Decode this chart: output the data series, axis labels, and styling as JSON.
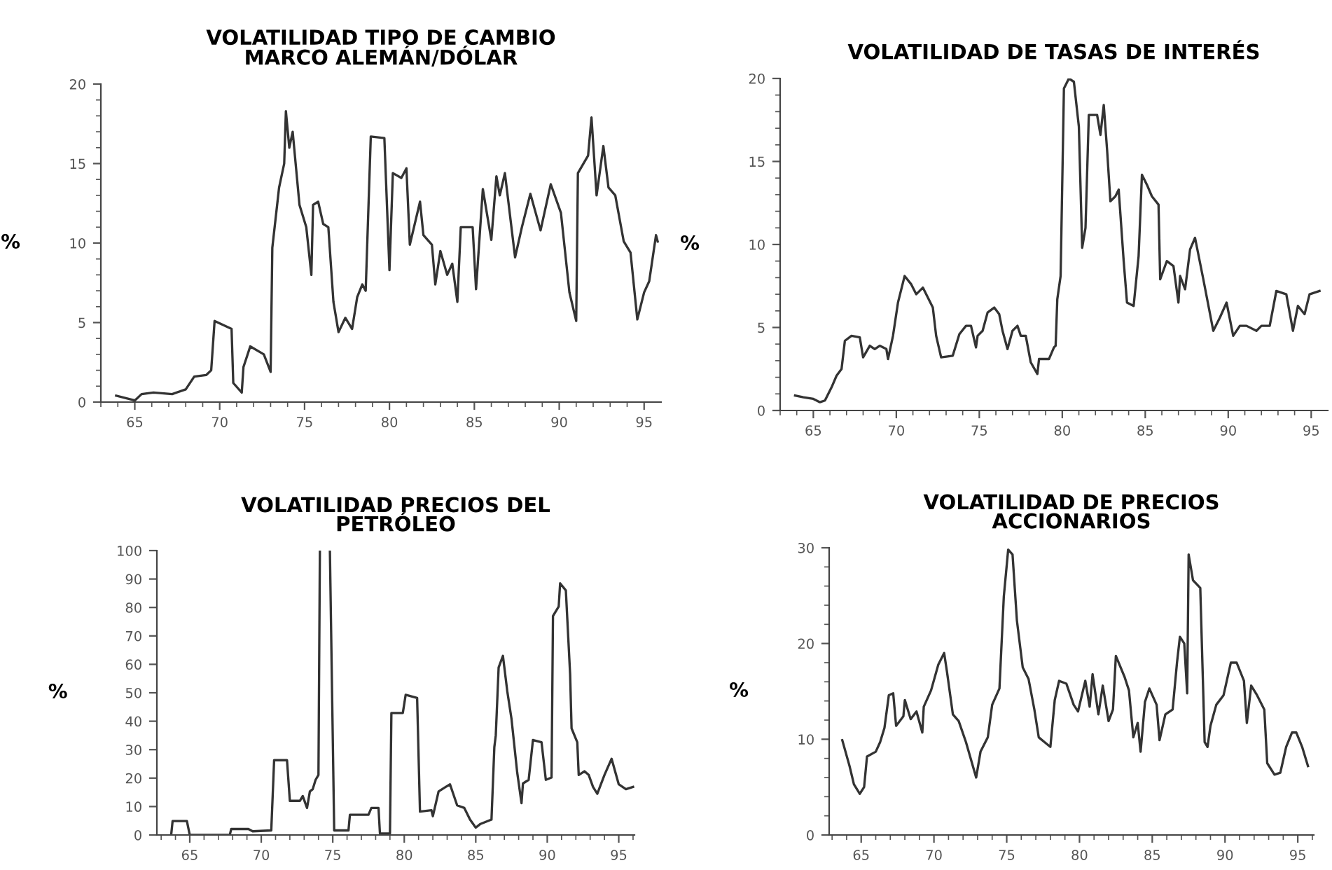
{
  "chart_data": [
    {
      "type": "line",
      "title": "VOLATILIDAD TIPO DE CAMBIO\nMARCO ALEMÁN/DÓLAR",
      "ylabel": "%",
      "grid": false,
      "xlim": [
        63,
        96
      ],
      "ylim": [
        0,
        20
      ],
      "xticks": [
        {
          "value": 63,
          "label": null
        },
        {
          "value": 64,
          "label": null
        },
        65,
        {
          "value": 66,
          "label": null
        },
        {
          "value": 67,
          "label": null
        },
        {
          "value": 68,
          "label": null
        },
        {
          "value": 69,
          "label": null
        },
        70,
        {
          "value": 71,
          "label": null
        },
        {
          "value": 72,
          "label": null
        },
        {
          "value": 73,
          "label": null
        },
        {
          "value": 74,
          "label": null
        },
        75,
        {
          "value": 76,
          "label": null
        },
        {
          "value": 77,
          "label": null
        },
        {
          "value": 78,
          "label": null
        },
        {
          "value": 79,
          "label": null
        },
        80,
        {
          "value": 81,
          "label": null
        },
        {
          "value": 82,
          "label": null
        },
        {
          "value": 83,
          "label": null
        },
        {
          "value": 84,
          "label": null
        },
        85,
        {
          "value": 86,
          "label": null
        },
        {
          "value": 87,
          "label": null
        },
        {
          "value": 88,
          "label": null
        },
        {
          "value": 89,
          "label": null
        },
        90,
        {
          "value": 91,
          "label": null
        },
        {
          "value": 92,
          "label": null
        },
        {
          "value": 93,
          "label": null
        },
        {
          "value": 94,
          "label": null
        },
        95
      ],
      "yticks": [
        0,
        {
          "value": 1,
          "label": null
        },
        {
          "value": 2,
          "label": null
        },
        {
          "value": 3,
          "label": null
        },
        {
          "value": 4,
          "label": null
        },
        5,
        {
          "value": 6,
          "label": null
        },
        {
          "value": 7,
          "label": null
        },
        {
          "value": 8,
          "label": null
        },
        {
          "value": 9,
          "label": null
        },
        10,
        {
          "value": 11,
          "label": null
        },
        {
          "value": 12,
          "label": null
        },
        {
          "value": 13,
          "label": null
        },
        {
          "value": 14,
          "label": null
        },
        15,
        {
          "value": 16,
          "label": null
        },
        {
          "value": 17,
          "label": null
        },
        {
          "value": 18,
          "label": null
        },
        {
          "value": 19,
          "label": null
        },
        20
      ],
      "series": [
        {
          "color": "#333333",
          "x": [
            63.9,
            65.0,
            65.4,
            66.1,
            67.2,
            68.0,
            68.5,
            69.2,
            69.5,
            69.7,
            70.7,
            70.8,
            71.3,
            71.4,
            71.8,
            72.6,
            73.0,
            73.1,
            73.5,
            73.8,
            73.9,
            74.1,
            74.3,
            74.7,
            75.1,
            75.4,
            75.5,
            75.8,
            76.1,
            76.4,
            76.7,
            77.0,
            77.4,
            77.8,
            78.1,
            78.4,
            78.6,
            78.9,
            79.7,
            80.0,
            80.2,
            80.7,
            81.0,
            81.2,
            81.8,
            82.0,
            82.5,
            82.7,
            83.0,
            83.4,
            83.7,
            84.0,
            84.2,
            84.9,
            85.1,
            85.5,
            86.0,
            86.3,
            86.5,
            86.8,
            87.4,
            87.8,
            88.3,
            88.9,
            89.5,
            90.1,
            90.6,
            91.0,
            91.1,
            91.7,
            91.9,
            92.2,
            92.6,
            92.9,
            93.3,
            93.8,
            94.2,
            94.6,
            95.0,
            95.3,
            95.7,
            95.8
          ],
          "values": [
            0.4,
            0.1,
            0.5,
            0.6,
            0.5,
            0.8,
            1.6,
            1.7,
            2.0,
            5.1,
            4.6,
            1.2,
            0.6,
            2.2,
            3.5,
            3.0,
            1.9,
            9.7,
            13.5,
            15.0,
            18.3,
            16.0,
            17.0,
            12.4,
            11.0,
            8.0,
            12.4,
            12.6,
            11.2,
            11.0,
            6.3,
            4.4,
            5.3,
            4.6,
            6.6,
            7.4,
            7.0,
            16.7,
            16.6,
            8.3,
            14.4,
            14.1,
            14.7,
            9.9,
            12.6,
            10.5,
            9.9,
            7.4,
            9.5,
            8.0,
            8.7,
            6.3,
            11.0,
            11.0,
            7.1,
            13.4,
            10.2,
            14.2,
            13.0,
            14.4,
            9.1,
            11.0,
            13.1,
            10.8,
            13.7,
            11.9,
            6.9,
            5.1,
            14.4,
            15.5,
            17.9,
            13.0,
            16.1,
            13.5,
            13.0,
            10.1,
            9.4,
            5.2,
            6.9,
            7.6,
            10.5,
            10.1
          ]
        }
      ]
    },
    {
      "type": "line",
      "title": "VOLATILIDAD DE TASAS DE INTERÉS",
      "ylabel": "%",
      "grid": false,
      "xlim": [
        63,
        96
      ],
      "ylim": [
        0,
        20
      ],
      "xticks": [
        {
          "value": 63,
          "label": null
        },
        {
          "value": 64,
          "label": null
        },
        65,
        {
          "value": 66,
          "label": null
        },
        {
          "value": 67,
          "label": null
        },
        {
          "value": 68,
          "label": null
        },
        {
          "value": 69,
          "label": null
        },
        70,
        {
          "value": 71,
          "label": null
        },
        {
          "value": 72,
          "label": null
        },
        {
          "value": 73,
          "label": null
        },
        {
          "value": 74,
          "label": null
        },
        75,
        {
          "value": 76,
          "label": null
        },
        {
          "value": 77,
          "label": null
        },
        {
          "value": 78,
          "label": null
        },
        {
          "value": 79,
          "label": null
        },
        80,
        {
          "value": 81,
          "label": null
        },
        {
          "value": 82,
          "label": null
        },
        {
          "value": 83,
          "label": null
        },
        {
          "value": 84,
          "label": null
        },
        85,
        {
          "value": 86,
          "label": null
        },
        {
          "value": 87,
          "label": null
        },
        {
          "value": 88,
          "label": null
        },
        {
          "value": 89,
          "label": null
        },
        90,
        {
          "value": 91,
          "label": null
        },
        {
          "value": 92,
          "label": null
        },
        {
          "value": 93,
          "label": null
        },
        {
          "value": 94,
          "label": null
        },
        95
      ],
      "yticks": [
        0,
        {
          "value": 1,
          "label": null
        },
        {
          "value": 2,
          "label": null
        },
        {
          "value": 3,
          "label": null
        },
        {
          "value": 4,
          "label": null
        },
        5,
        {
          "value": 6,
          "label": null
        },
        {
          "value": 7,
          "label": null
        },
        {
          "value": 8,
          "label": null
        },
        {
          "value": 9,
          "label": null
        },
        10,
        {
          "value": 11,
          "label": null
        },
        {
          "value": 12,
          "label": null
        },
        {
          "value": 13,
          "label": null
        },
        {
          "value": 14,
          "label": null
        },
        15,
        {
          "value": 16,
          "label": null
        },
        {
          "value": 17,
          "label": null
        },
        {
          "value": 18,
          "label": null
        },
        {
          "value": 19,
          "label": null
        },
        20
      ],
      "series": [
        {
          "color": "#333333",
          "x": [
            63.9,
            64.4,
            65.0,
            65.4,
            65.7,
            66.1,
            66.4,
            66.7,
            66.9,
            67.3,
            67.8,
            68.0,
            68.4,
            68.7,
            69.0,
            69.4,
            69.5,
            69.8,
            70.1,
            70.5,
            70.9,
            71.2,
            71.6,
            72.2,
            72.4,
            72.7,
            73.4,
            73.8,
            74.2,
            74.5,
            74.8,
            74.9,
            75.2,
            75.5,
            75.9,
            76.2,
            76.4,
            76.7,
            77.0,
            77.3,
            77.5,
            77.8,
            78.1,
            78.5,
            78.6,
            79.2,
            79.5,
            79.6,
            79.7,
            79.9,
            80.1,
            80.4,
            80.7,
            81.0,
            81.2,
            81.4,
            81.6,
            82.1,
            82.3,
            82.5,
            82.7,
            82.9,
            83.2,
            83.4,
            83.7,
            83.9,
            84.3,
            84.6,
            84.8,
            85.1,
            85.4,
            85.8,
            85.9,
            86.3,
            86.7,
            87.0,
            87.1,
            87.4,
            87.7,
            88.0,
            88.5,
            89.1,
            89.5,
            89.9,
            90.3,
            90.7,
            91.1,
            91.7,
            92.0,
            92.5,
            92.9,
            93.5,
            93.9,
            94.2,
            94.6,
            94.9,
            95.5
          ],
          "values": [
            0.9,
            0.8,
            0.7,
            0.5,
            0.6,
            1.4,
            2.1,
            2.5,
            4.2,
            4.5,
            4.4,
            3.2,
            3.9,
            3.7,
            3.9,
            3.7,
            3.1,
            4.5,
            6.5,
            8.1,
            7.6,
            7.0,
            7.4,
            6.2,
            4.5,
            3.2,
            3.3,
            4.6,
            5.1,
            5.1,
            3.8,
            4.5,
            4.8,
            5.9,
            6.2,
            5.8,
            4.8,
            3.7,
            4.8,
            5.1,
            4.5,
            4.5,
            2.9,
            2.2,
            3.1,
            3.1,
            3.8,
            3.9,
            6.7,
            8.1,
            19.4,
            20.0,
            19.8,
            17.1,
            9.8,
            11.0,
            17.8,
            17.8,
            16.6,
            18.4,
            15.7,
            12.6,
            12.9,
            13.3,
            9.0,
            6.5,
            6.3,
            9.3,
            14.2,
            13.6,
            12.9,
            12.4,
            7.9,
            9.0,
            8.7,
            6.5,
            8.1,
            7.3,
            9.7,
            10.4,
            7.9,
            4.8,
            5.6,
            6.5,
            4.5,
            5.1,
            5.1,
            4.8,
            5.1,
            5.1,
            7.2,
            7.0,
            4.8,
            6.3,
            5.8,
            7.0,
            7.2
          ]
        }
      ]
    },
    {
      "type": "line",
      "title": "VOLATILIDAD PRECIOS DEL\nPETRÓLEO",
      "ylabel": "%",
      "grid": false,
      "xlim": [
        62.7,
        96.1
      ],
      "ylim": [
        0,
        100
      ],
      "xticks": [
        {
          "value": 63,
          "label": null
        },
        {
          "value": 64,
          "label": null
        },
        65,
        {
          "value": 66,
          "label": null
        },
        {
          "value": 67,
          "label": null
        },
        {
          "value": 68,
          "label": null
        },
        {
          "value": 69,
          "label": null
        },
        70,
        {
          "value": 71,
          "label": null
        },
        {
          "value": 72,
          "label": null
        },
        {
          "value": 73,
          "label": null
        },
        {
          "value": 74,
          "label": null
        },
        75,
        {
          "value": 76,
          "label": null
        },
        {
          "value": 77,
          "label": null
        },
        {
          "value": 78,
          "label": null
        },
        {
          "value": 79,
          "label": null
        },
        80,
        {
          "value": 81,
          "label": null
        },
        {
          "value": 82,
          "label": null
        },
        {
          "value": 83,
          "label": null
        },
        {
          "value": 84,
          "label": null
        },
        85,
        {
          "value": 86,
          "label": null
        },
        {
          "value": 87,
          "label": null
        },
        {
          "value": 88,
          "label": null
        },
        {
          "value": 89,
          "label": null
        },
        90,
        {
          "value": 91,
          "label": null
        },
        {
          "value": 92,
          "label": null
        },
        {
          "value": 93,
          "label": null
        },
        {
          "value": 94,
          "label": null
        },
        95,
        {
          "value": 96,
          "label": null
        }
      ],
      "yticks": [
        0,
        10,
        20,
        30,
        40,
        50,
        60,
        70,
        80,
        90,
        100
      ],
      "series": [
        {
          "color": "#333333",
          "x": [
            63.7,
            63.8,
            64.8,
            65.0,
            67.8,
            67.9,
            69.1,
            69.4,
            70.7,
            70.9,
            71.8,
            72.0,
            72.7,
            72.9,
            73.2,
            73.4,
            73.6,
            73.8,
            74.0,
            74.1,
            74.7,
            74.8,
            75.1,
            76.1,
            76.2,
            77.5,
            77.7,
            78.2,
            78.3,
            79.0,
            79.1,
            79.9,
            80.1,
            80.9,
            81.1,
            81.9,
            82.0,
            82.4,
            82.9,
            83.2,
            83.7,
            84.2,
            84.6,
            85.0,
            85.3,
            86.1,
            86.3,
            86.4,
            86.6,
            86.9,
            87.2,
            87.5,
            87.9,
            88.2,
            88.3,
            88.7,
            89.0,
            89.6,
            89.9,
            90.3,
            90.4,
            90.8,
            90.9,
            91.3,
            91.6,
            91.7,
            92.1,
            92.2,
            92.6,
            92.9,
            93.2,
            93.5,
            94.0,
            94.5,
            95.0,
            95.5,
            96.0
          ],
          "values": [
            0,
            4.9,
            4.9,
            0,
            0,
            2.1,
            2.1,
            1.3,
            1.6,
            26.3,
            26.3,
            12.0,
            12.0,
            13.7,
            9.5,
            15.3,
            16.1,
            19.4,
            21.1,
            100,
            null,
            100,
            1.6,
            1.6,
            7.1,
            7.1,
            9.5,
            9.5,
            0.5,
            0.5,
            42.9,
            42.9,
            49.3,
            48.2,
            8.2,
            8.7,
            6.6,
            15.3,
            16.9,
            17.8,
            10.4,
            9.5,
            5.4,
            2.6,
            3.8,
            5.4,
            30.9,
            35.0,
            58.9,
            63.0,
            50.7,
            40.8,
            21.9,
            11.2,
            18.1,
            19.4,
            33.4,
            32.6,
            19.4,
            20.2,
            77.0,
            80.3,
            88.5,
            86.0,
            56.4,
            37.5,
            32.6,
            21.1,
            22.4,
            21.1,
            16.9,
            14.5,
            21.1,
            26.8,
            17.8,
            16.1,
            16.9
          ]
        }
      ]
    },
    {
      "type": "line",
      "title": "VOLATILIDAD DE PRECIOS\nACCIONARIOS",
      "ylabel": "%",
      "grid": false,
      "xlim": [
        62.8,
        96.1
      ],
      "ylim": [
        0,
        30
      ],
      "xticks": [
        {
          "value": 63,
          "label": null
        },
        {
          "value": 64,
          "label": null
        },
        65,
        {
          "value": 66,
          "label": null
        },
        {
          "value": 67,
          "label": null
        },
        {
          "value": 68,
          "label": null
        },
        {
          "value": 69,
          "label": null
        },
        70,
        {
          "value": 71,
          "label": null
        },
        {
          "value": 72,
          "label": null
        },
        {
          "value": 73,
          "label": null
        },
        {
          "value": 74,
          "label": null
        },
        75,
        {
          "value": 76,
          "label": null
        },
        {
          "value": 77,
          "label": null
        },
        {
          "value": 78,
          "label": null
        },
        {
          "value": 79,
          "label": null
        },
        80,
        {
          "value": 81,
          "label": null
        },
        {
          "value": 82,
          "label": null
        },
        {
          "value": 83,
          "label": null
        },
        {
          "value": 84,
          "label": null
        },
        85,
        {
          "value": 86,
          "label": null
        },
        {
          "value": 87,
          "label": null
        },
        {
          "value": 88,
          "label": null
        },
        {
          "value": 89,
          "label": null
        },
        90,
        {
          "value": 91,
          "label": null
        },
        {
          "value": 92,
          "label": null
        },
        {
          "value": 93,
          "label": null
        },
        {
          "value": 94,
          "label": null
        },
        95,
        {
          "value": 96,
          "label": null
        }
      ],
      "yticks": [
        0,
        {
          "value": 2,
          "label": null
        },
        {
          "value": 4,
          "label": null
        },
        {
          "value": 6,
          "label": null
        },
        {
          "value": 8,
          "label": null
        },
        10,
        {
          "value": 12,
          "label": null
        },
        {
          "value": 14,
          "label": null
        },
        {
          "value": 16,
          "label": null
        },
        {
          "value": 18,
          "label": null
        },
        20,
        {
          "value": 22,
          "label": null
        },
        {
          "value": 24,
          "label": null
        },
        {
          "value": 26,
          "label": null
        },
        {
          "value": 28,
          "label": null
        },
        30
      ],
      "series": [
        {
          "color": "#333333",
          "x": [
            63.7,
            64.2,
            64.5,
            64.9,
            65.2,
            65.4,
            66.0,
            66.3,
            66.6,
            66.9,
            67.2,
            67.4,
            67.9,
            68.0,
            68.4,
            68.8,
            69.2,
            69.3,
            69.8,
            70.3,
            70.7,
            70.9,
            71.3,
            71.7,
            72.2,
            72.9,
            73.2,
            73.7,
            74.0,
            74.5,
            74.8,
            75.1,
            75.4,
            75.7,
            76.1,
            76.5,
            76.9,
            77.2,
            77.6,
            78.0,
            78.3,
            78.6,
            79.1,
            79.6,
            79.9,
            80.4,
            80.7,
            80.9,
            81.3,
            81.6,
            82.0,
            82.3,
            82.5,
            83.1,
            83.4,
            83.7,
            84.0,
            84.2,
            84.5,
            84.8,
            85.3,
            85.5,
            85.9,
            86.4,
            86.7,
            86.9,
            87.2,
            87.4,
            87.5,
            87.8,
            88.3,
            88.6,
            88.8,
            89.0,
            89.4,
            89.9,
            90.4,
            90.8,
            91.3,
            91.5,
            91.8,
            92.2,
            92.7,
            92.9,
            93.4,
            93.8,
            94.2,
            94.6,
            94.9,
            95.3,
            95.7
          ],
          "values": [
            9.9,
            7.2,
            5.3,
            4.3,
            5.0,
            8.2,
            8.7,
            9.7,
            11.2,
            14.6,
            14.8,
            11.4,
            12.4,
            14.1,
            12.1,
            12.9,
            10.7,
            13.4,
            15.1,
            17.8,
            19.0,
            17.0,
            12.6,
            11.9,
            9.7,
            6.0,
            8.7,
            10.2,
            13.6,
            15.3,
            24.9,
            29.8,
            29.3,
            22.4,
            17.5,
            16.3,
            13.1,
            10.2,
            9.7,
            9.2,
            14.1,
            16.1,
            15.8,
            13.6,
            12.9,
            16.1,
            13.4,
            16.8,
            12.6,
            15.6,
            11.9,
            13.1,
            18.7,
            16.5,
            15.1,
            10.2,
            11.7,
            8.7,
            13.9,
            15.3,
            13.6,
            9.9,
            12.6,
            13.1,
            18.0,
            20.7,
            20.0,
            14.8,
            29.3,
            26.6,
            25.8,
            9.7,
            9.2,
            11.4,
            13.6,
            14.6,
            18.0,
            18.0,
            16.1,
            11.7,
            15.6,
            14.6,
            13.1,
            7.5,
            6.3,
            6.5,
            9.2,
            10.7,
            10.7,
            9.2,
            7.2
          ]
        }
      ]
    }
  ]
}
